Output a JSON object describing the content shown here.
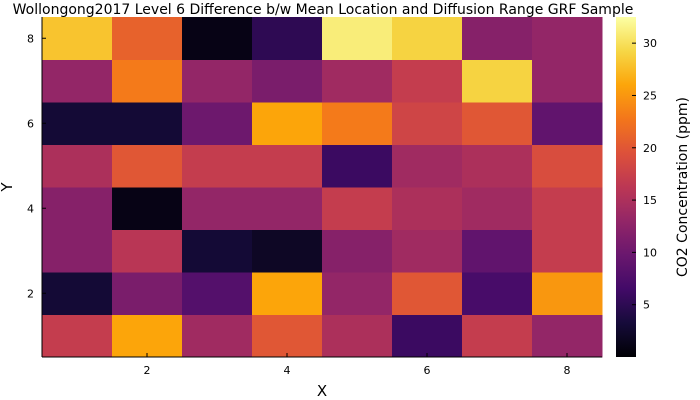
{
  "chart_data": {
    "type": "heatmap",
    "title": "Wollongong2017 Level 6 Difference b/w Mean Location and Diffusion Range GRF Sample",
    "xlabel": "X",
    "ylabel": "Y",
    "colorbar_label": "CO2 Concentration (ppm)",
    "colormap": "inferno",
    "x": [
      1,
      2,
      3,
      4,
      5,
      6,
      7,
      8
    ],
    "y": [
      1,
      2,
      3,
      4,
      5,
      6,
      7,
      8
    ],
    "x_ticks": [
      "2",
      "4",
      "6",
      "8"
    ],
    "y_ticks": [
      "2",
      "4",
      "6",
      "8"
    ],
    "colorbar_ticks": [
      "5",
      "10",
      "15",
      "20",
      "25",
      "30"
    ],
    "clim": [
      0,
      32.5
    ],
    "values_by_row_bottom_to_top": [
      [
        17,
        26,
        14,
        20,
        15,
        6,
        17,
        13
      ],
      [
        3,
        11,
        8,
        26,
        13,
        20,
        7,
        25
      ],
      [
        12,
        16,
        3,
        2,
        12,
        14,
        9,
        17
      ],
      [
        12,
        1,
        13,
        13,
        17,
        15,
        14,
        17
      ],
      [
        15,
        20,
        17,
        17,
        6,
        14,
        15,
        19
      ],
      [
        3,
        3,
        10,
        26,
        23,
        18,
        20,
        9
      ],
      [
        13,
        23,
        13,
        11,
        14,
        17,
        29,
        13
      ],
      [
        28,
        21,
        1,
        5,
        31,
        29,
        12,
        13
      ]
    ]
  }
}
